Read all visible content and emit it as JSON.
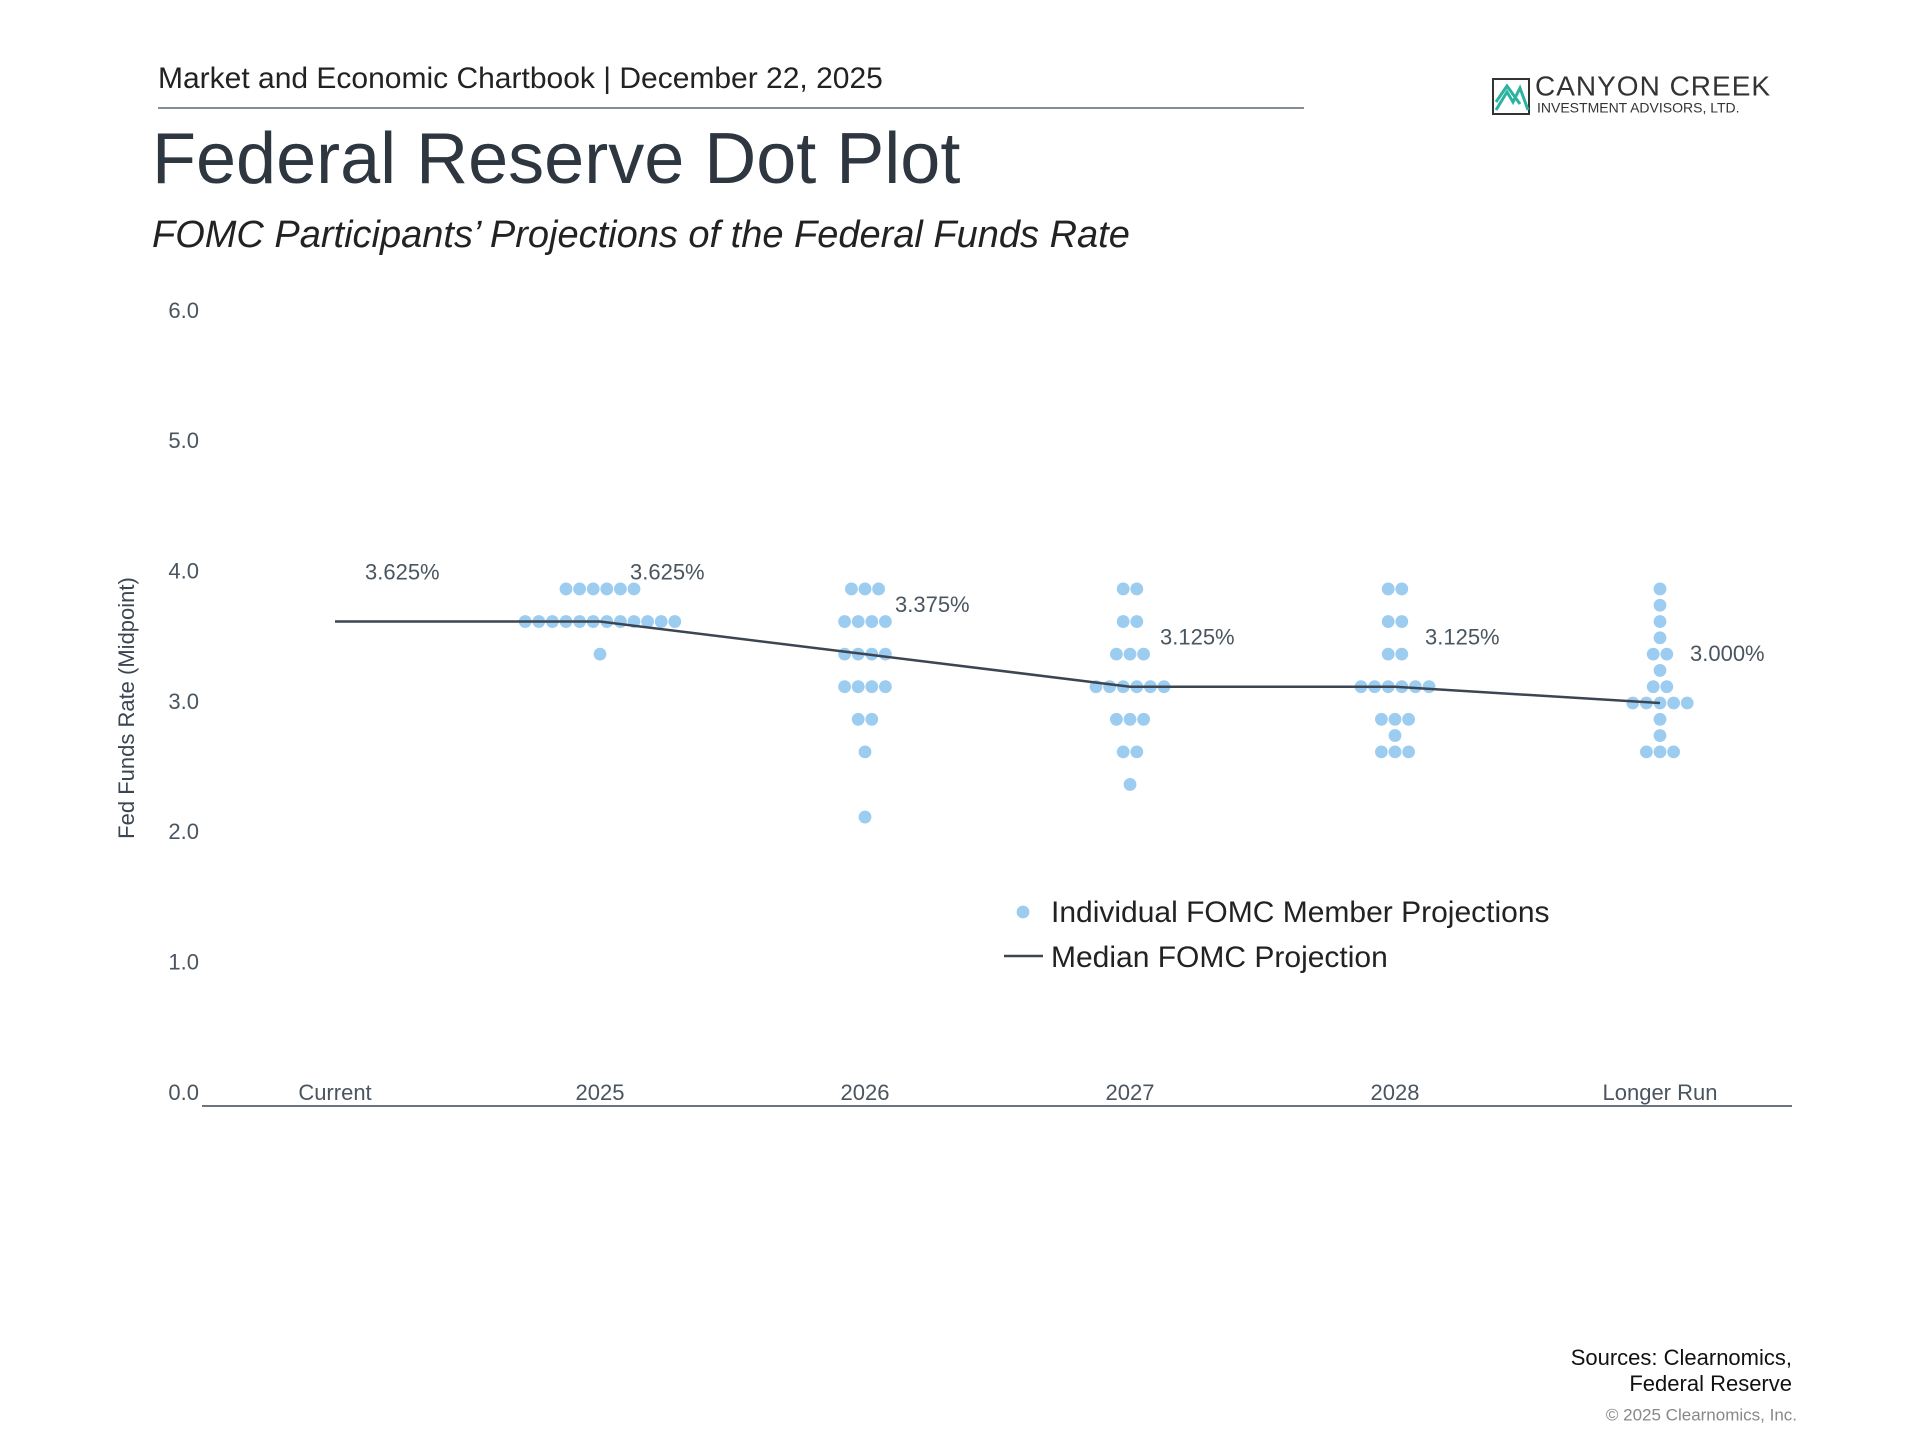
{
  "header": {
    "text": "Market and Economic Chartbook | December 22, 2025",
    "logo_name": "CANYON CREEK",
    "logo_sub": "INVESTMENT ADVISORS, LTD."
  },
  "chart_data": {
    "type": "dot",
    "title": "Federal Reserve Dot Plot",
    "subtitle": "FOMC Participants’ Projections of the Federal Funds Rate",
    "ylabel": "Fed Funds Rate (Midpoint)",
    "categories": [
      "Current",
      "2025",
      "2026",
      "2027",
      "2028",
      "Longer Run"
    ],
    "ylim": [
      0,
      6
    ],
    "yticks": [
      {
        "value": 0,
        "label": "0.0"
      },
      {
        "value": 1,
        "label": "1.0"
      },
      {
        "value": 2,
        "label": "2.0"
      },
      {
        "value": 3,
        "label": "3.0"
      },
      {
        "value": 4,
        "label": "4.0"
      },
      {
        "value": 5,
        "label": "5.0"
      },
      {
        "value": 6,
        "label": "6.0"
      }
    ],
    "dots": {
      "name": "Individual FOMC Member Projections",
      "color": "#9ccdf0",
      "values": [
        [],
        [
          3.875,
          3.875,
          3.875,
          3.875,
          3.875,
          3.875,
          3.625,
          3.625,
          3.625,
          3.625,
          3.625,
          3.625,
          3.625,
          3.625,
          3.625,
          3.625,
          3.625,
          3.625,
          3.375
        ],
        [
          3.875,
          3.875,
          3.875,
          3.625,
          3.625,
          3.625,
          3.625,
          3.375,
          3.375,
          3.375,
          3.375,
          3.125,
          3.125,
          3.125,
          3.125,
          2.875,
          2.875,
          2.625,
          2.125
        ],
        [
          3.875,
          3.875,
          3.625,
          3.625,
          3.375,
          3.375,
          3.375,
          3.125,
          3.125,
          3.125,
          3.125,
          3.125,
          3.125,
          2.875,
          2.875,
          2.875,
          2.625,
          2.625,
          2.375
        ],
        [
          3.875,
          3.875,
          3.625,
          3.625,
          3.375,
          3.375,
          3.125,
          3.125,
          3.125,
          3.125,
          3.125,
          3.125,
          2.875,
          2.875,
          2.875,
          2.75,
          2.625,
          2.625,
          2.625
        ],
        [
          3.875,
          3.75,
          3.625,
          3.5,
          3.375,
          3.375,
          3.25,
          3.125,
          3.125,
          3.0,
          3.0,
          3.0,
          3.0,
          3.0,
          2.875,
          2.75,
          2.625,
          2.625,
          2.625
        ]
      ]
    },
    "median": {
      "name": "Median FOMC Projection",
      "color": "#3b4652",
      "values": [
        3.625,
        3.625,
        3.375,
        3.125,
        3.125,
        3.0
      ],
      "value_labels": [
        "3.625%",
        "3.625%",
        "3.375%",
        "3.125%",
        "3.125%",
        "3.000%"
      ]
    }
  },
  "footer": {
    "sources_1": "Sources: Clearnomics,",
    "sources_2": "Federal Reserve",
    "copyright": "© 2025 Clearnomics, Inc."
  }
}
